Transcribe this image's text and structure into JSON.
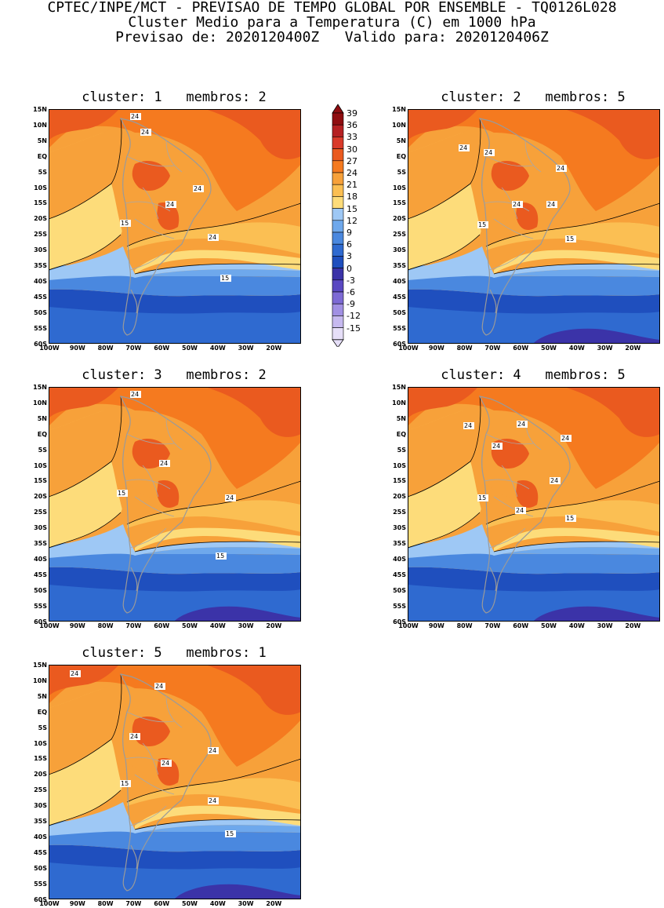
{
  "header": {
    "line1": "CPTEC/INPE/MCT - PREVISAO DE TEMPO GLOBAL POR ENSEMBLE - TQ0126L028",
    "line2": "Cluster Medio para a Temperatura (C) em 1000 hPa",
    "line3": "Previsao de: 2020120400Z   Valido para: 2020120406Z"
  },
  "colorbar": {
    "labels": [
      "39",
      "36",
      "33",
      "30",
      "27",
      "24",
      "21",
      "18",
      "15",
      "12",
      "9",
      "6",
      "3",
      "0",
      "-3",
      "-6",
      "-9",
      "-12",
      "-15"
    ],
    "colors": [
      "#8f0d10",
      "#b52022",
      "#d93a2a",
      "#ea5a1f",
      "#f57a1f",
      "#f7a13a",
      "#fbbf53",
      "#fddc7a",
      "#9ec8f5",
      "#6ea8ec",
      "#4a88df",
      "#2f6ad0",
      "#1f4fbe",
      "#3b33a8",
      "#5a48c2",
      "#7d6ad5",
      "#a190e3",
      "#c6b9ef",
      "#e6dff8"
    ]
  },
  "lat_labels": [
    "15N",
    "10N",
    "5N",
    "EQ",
    "5S",
    "10S",
    "15S",
    "20S",
    "25S",
    "30S",
    "35S",
    "40S",
    "45S",
    "50S",
    "55S",
    "60S"
  ],
  "lon_labels": [
    "100W",
    "90W",
    "80W",
    "70W",
    "60W",
    "50W",
    "40W",
    "30W",
    "20W"
  ],
  "maps": [
    {
      "id": 1,
      "title": "cluster: 1   membros: 2",
      "contour_labels": {
        "a": "24",
        "b": "24",
        "c": "24",
        "d": "24",
        "e": "24",
        "f": "15",
        "g": "15"
      }
    },
    {
      "id": 2,
      "title": "cluster: 2   membros: 5",
      "contour_labels": {
        "a": "24",
        "b": "24",
        "c": "24",
        "d": "24",
        "e": "24",
        "f": "15",
        "g": "15"
      }
    },
    {
      "id": 3,
      "title": "cluster: 3   membros: 2",
      "contour_labels": {
        "a": "24",
        "b": "24",
        "c": "24",
        "d": "15",
        "e": "15"
      }
    },
    {
      "id": 4,
      "title": "cluster: 4   membros: 5",
      "contour_labels": {
        "a": "24",
        "b": "24",
        "c": "24",
        "d": "24",
        "e": "24",
        "f": "24",
        "g": "15",
        "h": "15"
      }
    },
    {
      "id": 5,
      "title": "cluster: 5   membros: 1",
      "contour_labels": {
        "a": "24",
        "b": "24",
        "c": "24",
        "d": "24",
        "e": "24",
        "f": "24",
        "g": "15",
        "h": "15"
      }
    }
  ]
}
